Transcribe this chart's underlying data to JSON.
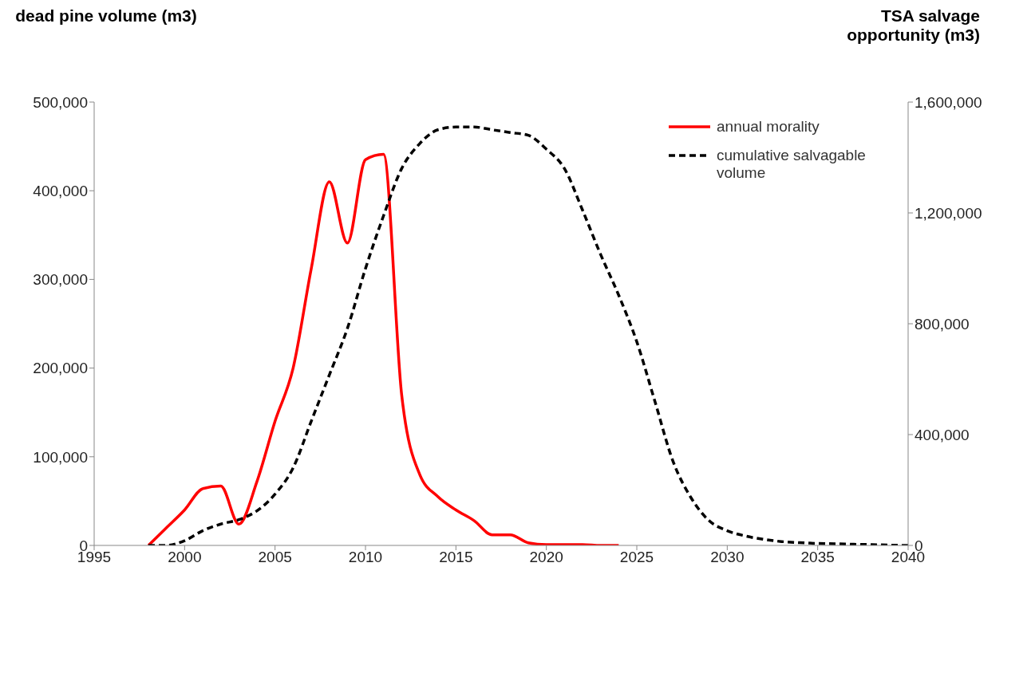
{
  "chart_data": {
    "type": "line",
    "ylabel": "dead pine volume (m3)",
    "y2label": "TSA salvage opportunity (m3)",
    "x": [
      1998,
      1999,
      2000,
      2001,
      2002,
      2003,
      2004,
      2005,
      2006,
      2007,
      2008,
      2009,
      2010,
      2011,
      2012,
      2013,
      2014,
      2015,
      2016,
      2017,
      2018,
      2019,
      2020,
      2021,
      2022,
      2023,
      2024,
      2025,
      2026,
      2027,
      2028,
      2029,
      2030,
      2031,
      2032,
      2033,
      2034,
      2035,
      2036,
      2037,
      2038,
      2039,
      2040
    ],
    "series": [
      {
        "name": "annual morality",
        "color": "#ff0000",
        "line_style": "solid",
        "values": [
          0,
          20000,
          40000,
          64000,
          67000,
          24000,
          72000,
          140000,
          200000,
          312000,
          410000,
          341000,
          435000,
          441000,
          170000,
          80000,
          55000,
          40000,
          28000,
          12000,
          12000,
          3000,
          1000,
          1000,
          1000,
          0,
          0,
          null,
          null,
          null,
          null,
          null,
          null,
          null,
          null,
          null,
          null,
          null,
          null,
          null,
          null,
          null,
          null
        ]
      },
      {
        "name": "cumulative salvagable volume",
        "color": "#000000",
        "line_style": "dashed",
        "axis": "y2",
        "values": [
          0,
          0,
          17000,
          53000,
          77000,
          93000,
          125000,
          185000,
          280000,
          448000,
          615000,
          783000,
          999000,
          1190000,
          1360000,
          1450000,
          1500000,
          1510000,
          1510000,
          1500000,
          1490000,
          1480000,
          1430000,
          1360000,
          1210000,
          1050000,
          903000,
          735000,
          520000,
          304000,
          172000,
          89000,
          53000,
          34000,
          22000,
          14000,
          10000,
          7000,
          6000,
          4000,
          3000,
          1000,
          0
        ]
      }
    ],
    "xlim": [
      1995,
      2040
    ],
    "xticks": [
      1995,
      2000,
      2005,
      2010,
      2015,
      2020,
      2025,
      2030,
      2035,
      2040
    ],
    "ylim": [
      0,
      500000
    ],
    "yticks": [
      0,
      {
        "value": 100000,
        "label": "100,000"
      },
      {
        "value": 200000,
        "label": "200,000"
      },
      {
        "value": 300000,
        "label": "300,000"
      },
      {
        "value": 400000,
        "label": "400,000"
      },
      {
        "value": 500000,
        "label": "500,000"
      }
    ],
    "y2lim": [
      0,
      1600000
    ],
    "y2ticks": [
      0,
      {
        "value": 400000,
        "label": "400,000"
      },
      {
        "value": 800000,
        "label": "800,000"
      },
      {
        "value": 1200000,
        "label": "1,200,000"
      },
      {
        "value": 1600000,
        "label": "1,600,000"
      }
    ],
    "legend": "top right",
    "marker": "none"
  }
}
